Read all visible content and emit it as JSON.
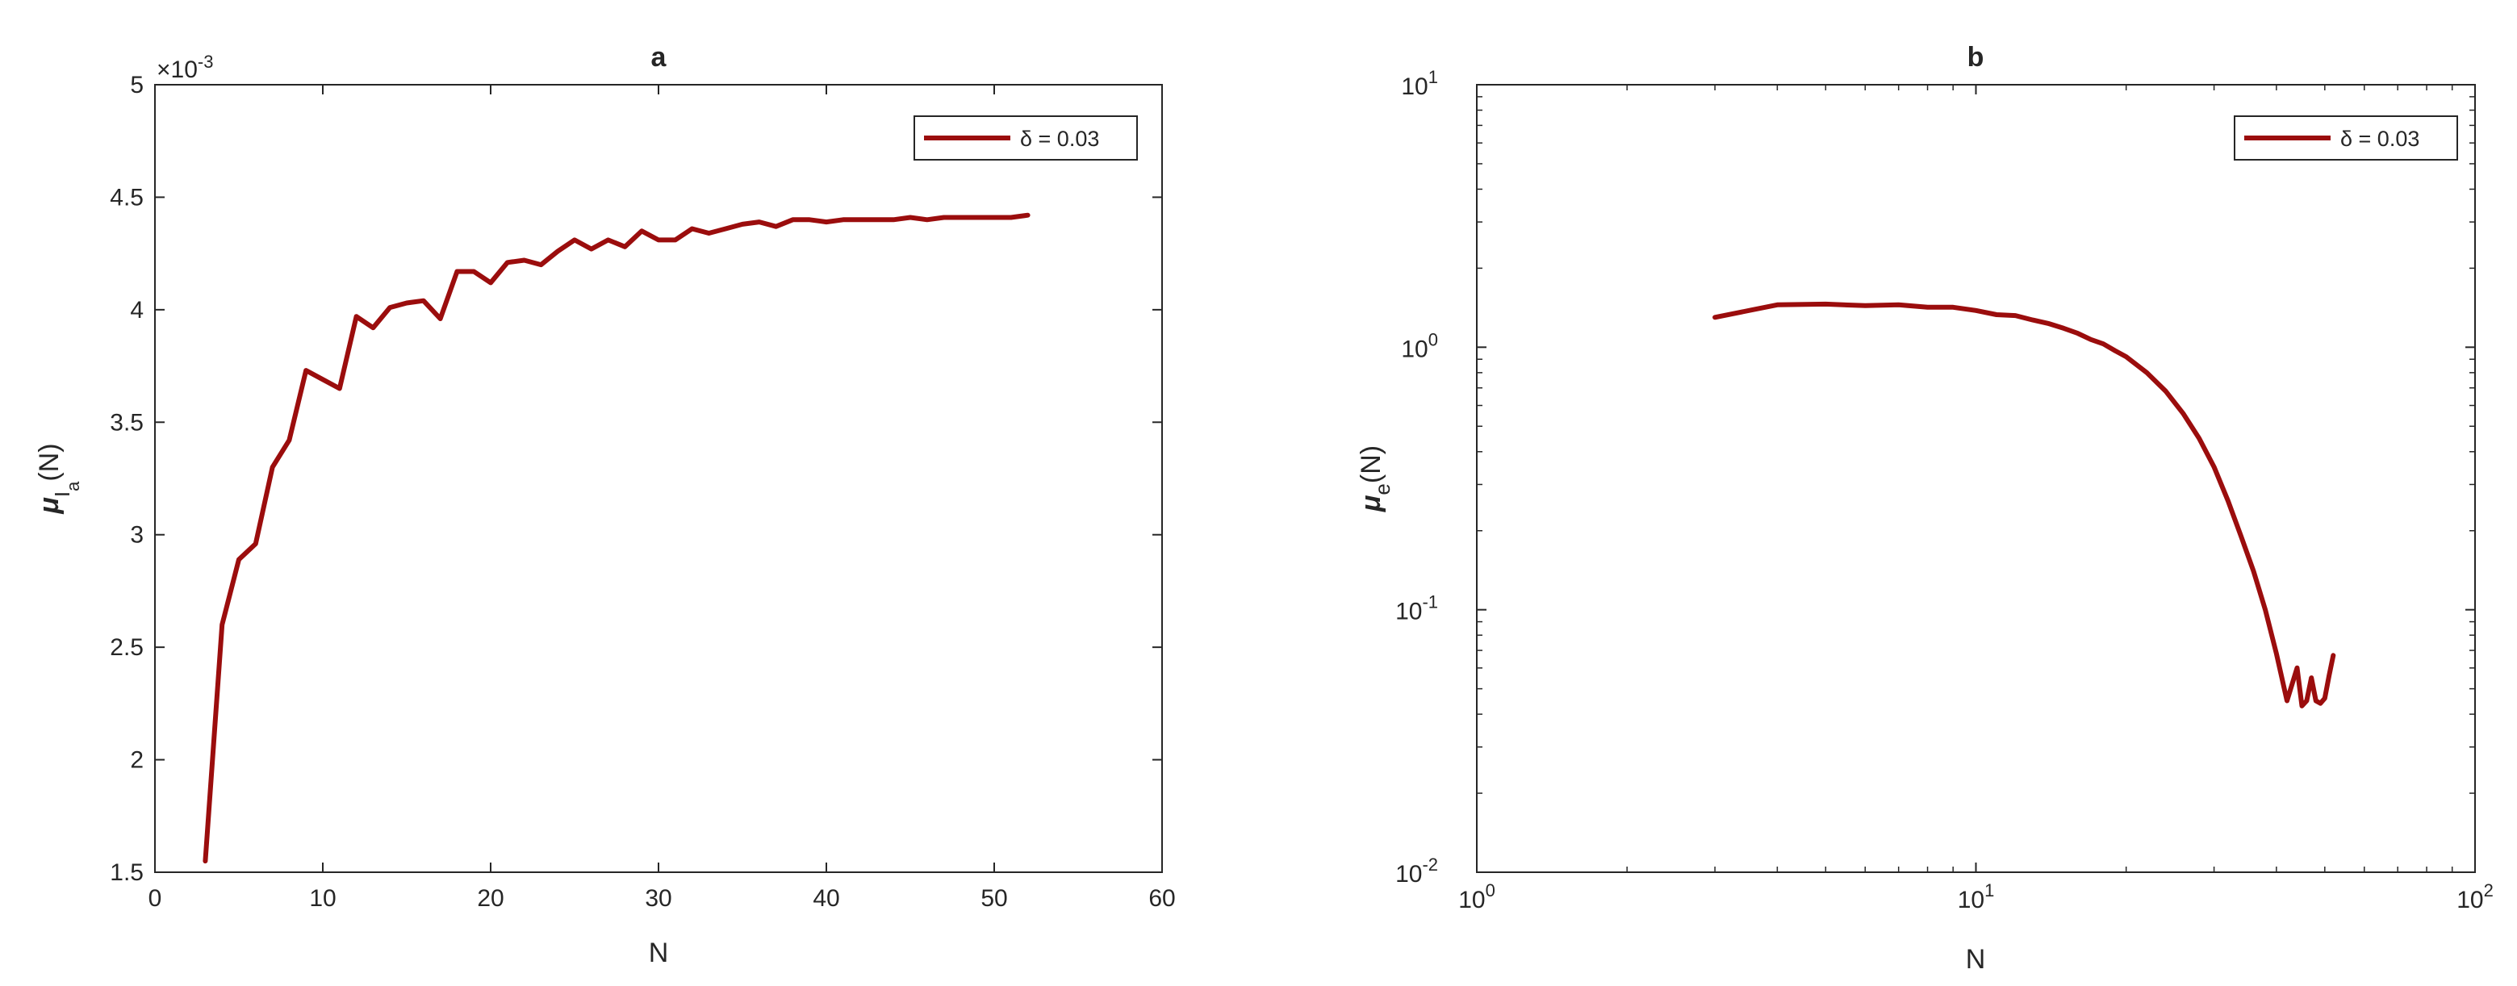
{
  "colors": {
    "series": "#9b0d0d",
    "axes": "#262626",
    "background": "#ffffff"
  },
  "chart_data": [
    {
      "id": "a",
      "type": "line",
      "title": "a",
      "xlabel": "N",
      "ylabel_main": "μ",
      "ylabel_sub": "I",
      "ylabel_subsub": "a",
      "ylabel_tail": "(N)",
      "exponent_label": "×10",
      "exponent_power": "-3",
      "xscale": "linear",
      "yscale": "linear",
      "xlim": [
        0,
        60
      ],
      "ylim": [
        1.5,
        5
      ],
      "xticks": [
        0,
        10,
        20,
        30,
        40,
        50,
        60
      ],
      "xtick_labels": [
        "0",
        "10",
        "20",
        "30",
        "40",
        "50",
        "60"
      ],
      "yticks": [
        1.5,
        2,
        2.5,
        3,
        3.5,
        4,
        4.5,
        5
      ],
      "ytick_labels": [
        "1.5",
        "2",
        "2.5",
        "3",
        "3.5",
        "4",
        "4.5",
        "5"
      ],
      "grid": false,
      "legend_position": "top-right",
      "legend_label": "δ = 0.03",
      "series": [
        {
          "name": "δ = 0.03",
          "x": [
            3,
            4,
            5,
            6,
            7,
            8,
            9,
            10,
            11,
            12,
            13,
            14,
            15,
            16,
            17,
            18,
            19,
            20,
            21,
            22,
            23,
            24,
            25,
            26,
            27,
            28,
            29,
            30,
            31,
            32,
            33,
            34,
            35,
            36,
            37,
            38,
            39,
            40,
            41,
            42,
            43,
            44,
            45,
            46,
            47,
            48,
            49,
            50,
            51,
            52
          ],
          "y": [
            1.55,
            2.6,
            2.89,
            2.96,
            3.3,
            3.42,
            3.73,
            3.69,
            3.65,
            3.97,
            3.92,
            4.01,
            4.03,
            4.04,
            3.96,
            4.17,
            4.17,
            4.12,
            4.21,
            4.22,
            4.2,
            4.26,
            4.31,
            4.27,
            4.31,
            4.28,
            4.35,
            4.31,
            4.31,
            4.36,
            4.34,
            4.36,
            4.38,
            4.39,
            4.37,
            4.4,
            4.4,
            4.39,
            4.4,
            4.4,
            4.4,
            4.4,
            4.41,
            4.4,
            4.41,
            4.41,
            4.41,
            4.41,
            4.41,
            4.42
          ]
        }
      ]
    },
    {
      "id": "b",
      "type": "line",
      "title": "b",
      "xlabel": "N",
      "ylabel_main": "μ",
      "ylabel_sub": "e",
      "ylabel_tail": "(N)",
      "xscale": "log",
      "yscale": "log",
      "xlim": [
        1,
        100
      ],
      "ylim": [
        0.01,
        10
      ],
      "xtick_base": [
        "10",
        "10",
        "10"
      ],
      "xtick_exp": [
        "0",
        "1",
        "2"
      ],
      "ytick_base": [
        "10",
        "10",
        "10",
        "10"
      ],
      "ytick_exp": [
        "-2",
        "-1",
        "0",
        "1"
      ],
      "grid": false,
      "legend_position": "top-right",
      "legend_label": "δ = 0.03",
      "series": [
        {
          "name": "δ = 0.03",
          "x": [
            3,
            4,
            5,
            6,
            7,
            8,
            9,
            10,
            11,
            12,
            13,
            14,
            15,
            16,
            17,
            18,
            19,
            20,
            22,
            24,
            26,
            28,
            30,
            32,
            34,
            36,
            38,
            40,
            42,
            44,
            45,
            46,
            47,
            48,
            49,
            50,
            51,
            52
          ],
          "y": [
            1.3,
            1.45,
            1.46,
            1.44,
            1.45,
            1.42,
            1.42,
            1.38,
            1.33,
            1.32,
            1.27,
            1.23,
            1.18,
            1.13,
            1.07,
            1.03,
            0.97,
            0.92,
            0.8,
            0.68,
            0.56,
            0.45,
            0.35,
            0.26,
            0.19,
            0.14,
            0.1,
            0.068,
            0.045,
            0.06,
            0.043,
            0.045,
            0.055,
            0.045,
            0.044,
            0.046,
            0.056,
            0.067
          ]
        }
      ]
    }
  ]
}
